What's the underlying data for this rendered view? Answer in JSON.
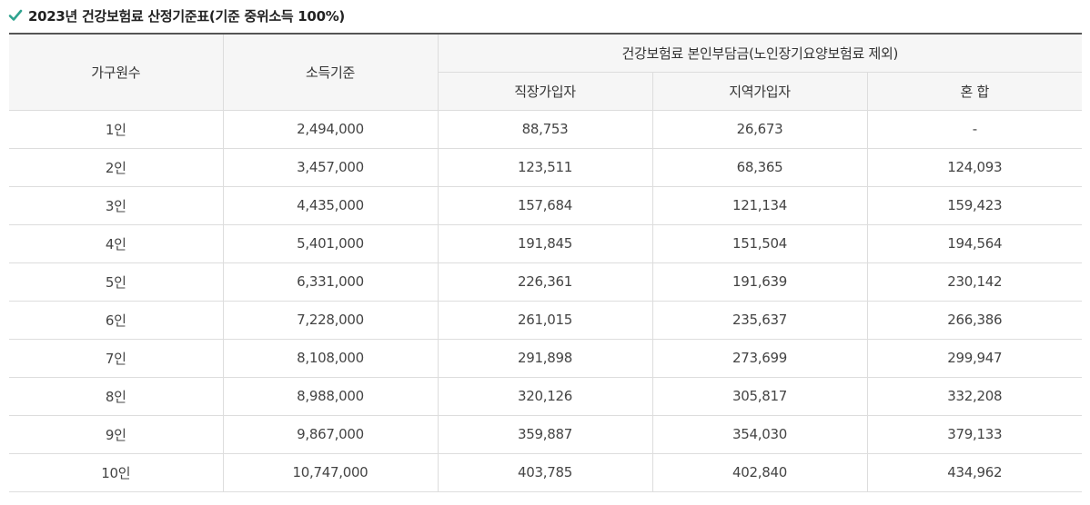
{
  "title": "2023년 건강보험료 산정기준표(기준 중위소득 100%)",
  "icons": {
    "title_icon": "check-icon",
    "accent_color": "#2fa38f"
  },
  "table": {
    "headers": {
      "household": "가구원수",
      "income": "소득기준",
      "premium_group": "건강보험료 본인부담금(노인장기요양보험료 제외)",
      "employee": "직장가입자",
      "regional": "지역가입자",
      "mixed": "혼 합"
    },
    "rows": [
      {
        "household": "1인",
        "income": "2,494,000",
        "employee": "88,753",
        "regional": "26,673",
        "mixed": "-"
      },
      {
        "household": "2인",
        "income": "3,457,000",
        "employee": "123,511",
        "regional": "68,365",
        "mixed": "124,093"
      },
      {
        "household": "3인",
        "income": "4,435,000",
        "employee": "157,684",
        "regional": "121,134",
        "mixed": "159,423"
      },
      {
        "household": "4인",
        "income": "5,401,000",
        "employee": "191,845",
        "regional": "151,504",
        "mixed": "194,564"
      },
      {
        "household": "5인",
        "income": "6,331,000",
        "employee": "226,361",
        "regional": "191,639",
        "mixed": "230,142"
      },
      {
        "household": "6인",
        "income": "7,228,000",
        "employee": "261,015",
        "regional": "235,637",
        "mixed": "266,386"
      },
      {
        "household": "7인",
        "income": "8,108,000",
        "employee": "291,898",
        "regional": "273,699",
        "mixed": "299,947"
      },
      {
        "household": "8인",
        "income": "8,988,000",
        "employee": "320,126",
        "regional": "305,817",
        "mixed": "332,208"
      },
      {
        "household": "9인",
        "income": "9,867,000",
        "employee": "359,887",
        "regional": "354,030",
        "mixed": "379,133"
      },
      {
        "household": "10인",
        "income": "10,747,000",
        "employee": "403,785",
        "regional": "402,840",
        "mixed": "434,962"
      }
    ]
  }
}
